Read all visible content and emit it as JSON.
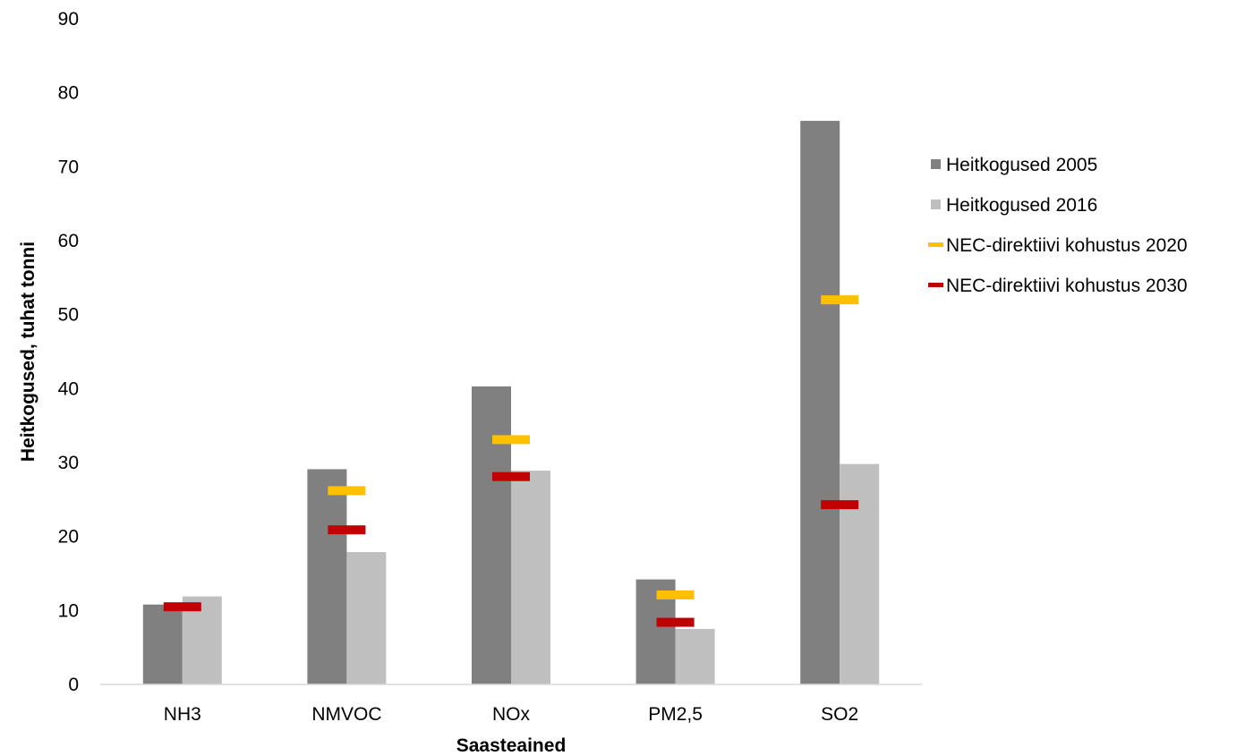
{
  "chart_data": {
    "type": "bar",
    "title": "",
    "xlabel": "Saasteained",
    "ylabel": "Heitkogused, tuhat tonni",
    "ylim": [
      0,
      90
    ],
    "yticks": [
      0,
      10,
      20,
      30,
      40,
      50,
      60,
      70,
      80,
      90
    ],
    "grid": false,
    "legend_position": "right",
    "categories": [
      "NH3",
      "NMVOC",
      "NOx",
      "PM2,5",
      "SO2"
    ],
    "series": [
      {
        "name": "Heitkogused 2005",
        "kind": "bar",
        "color": "#808080",
        "values": [
          10.8,
          29.1,
          40.3,
          14.2,
          76.2
        ]
      },
      {
        "name": "Heitkogused 2016",
        "kind": "bar",
        "color": "#bfbfbf",
        "values": [
          11.9,
          17.9,
          28.9,
          7.5,
          29.8
        ]
      },
      {
        "name": "NEC-direktiivi kohustus 2020",
        "kind": "marker",
        "color": "#ffc000",
        "values": [
          null,
          26.2,
          33.1,
          12.1,
          52.0
        ]
      },
      {
        "name": "NEC-direktiivi kohustus 2030",
        "kind": "marker",
        "color": "#c00000",
        "values": [
          10.5,
          20.9,
          28.1,
          8.4,
          24.3
        ]
      }
    ]
  }
}
